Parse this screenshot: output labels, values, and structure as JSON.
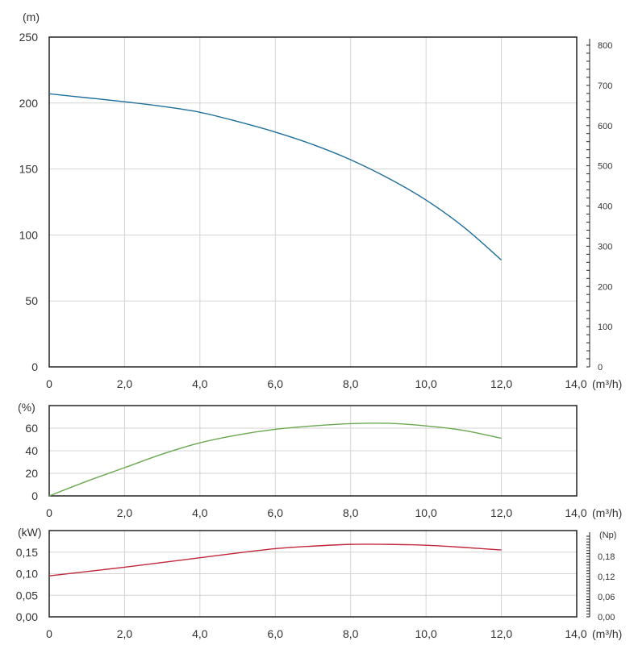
{
  "chart_data": [
    {
      "type": "line",
      "name": "head",
      "ylabel": "(m)",
      "xlabel": "(m³/h)",
      "xlim": [
        0,
        14
      ],
      "ylim": [
        0,
        250
      ],
      "xticks": [
        "0",
        "2,0",
        "4,0",
        "6,0",
        "8,0",
        "10,0",
        "12,0",
        "14,0"
      ],
      "yticks": [
        "0",
        "50",
        "100",
        "150",
        "200",
        "250"
      ],
      "right_axis": {
        "ylim": [
          0,
          800
        ],
        "ticks": [
          "0",
          "100",
          "200",
          "300",
          "400",
          "500",
          "600",
          "700",
          "800"
        ]
      },
      "grid": true,
      "color": "#1f6f9a",
      "x": [
        0,
        1,
        2,
        3,
        4,
        5,
        6,
        7,
        8,
        9,
        10,
        11,
        12
      ],
      "y": [
        207,
        204,
        201,
        197.5,
        193,
        186,
        178,
        168.5,
        157,
        143,
        126.5,
        106,
        81
      ]
    },
    {
      "type": "line",
      "name": "efficiency",
      "ylabel": "(%)",
      "xlabel": "(m³/h)",
      "xlim": [
        0,
        14
      ],
      "ylim": [
        0,
        80
      ],
      "xticks": [
        "0",
        "2,0",
        "4,0",
        "6,0",
        "8,0",
        "10,0",
        "12,0",
        "14,0"
      ],
      "yticks": [
        "0",
        "20",
        "40",
        "60"
      ],
      "grid": true,
      "color": "#6aa84f",
      "x": [
        0,
        1,
        2,
        3,
        4,
        5,
        6,
        7,
        8,
        9,
        10,
        11,
        12
      ],
      "y": [
        0,
        13,
        25,
        37,
        47,
        54,
        59,
        62,
        64,
        64.3,
        62,
        58,
        51
      ]
    },
    {
      "type": "line",
      "name": "power",
      "ylabel": "(kW)",
      "xlabel": "(m³/h)",
      "xlim": [
        0,
        14
      ],
      "ylim": [
        0,
        0.2
      ],
      "xticks": [
        "0",
        "2,0",
        "4,0",
        "6,0",
        "8,0",
        "10,0",
        "12,0",
        "14,0"
      ],
      "yticks": [
        "0,00",
        "0,05",
        "0,10",
        "0,15"
      ],
      "right_axis": {
        "label": "(Np)",
        "ylim": [
          0,
          0.24
        ],
        "ticks": [
          "0,00",
          "0,06",
          "0,12",
          "0,18"
        ]
      },
      "grid": true,
      "color": "#c0273a",
      "x": [
        0,
        1,
        2,
        3,
        4,
        5,
        6,
        7,
        8,
        9,
        10,
        11,
        12
      ],
      "y": [
        0.095,
        0.105,
        0.115,
        0.126,
        0.137,
        0.148,
        0.158,
        0.164,
        0.168,
        0.168,
        0.166,
        0.161,
        0.155
      ]
    }
  ]
}
